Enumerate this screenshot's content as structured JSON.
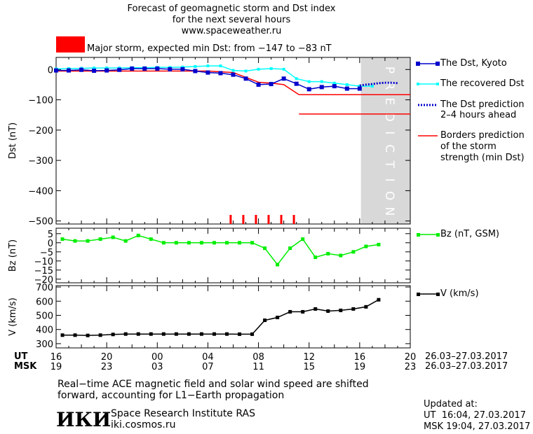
{
  "header": {
    "title_line1": "Forecast of geomagnetic storm and Dst index",
    "title_line2": "for the next several hours",
    "url": "www.spaceweather.ru",
    "storm_text": "Major storm, expected min Dst: from −147 to −83 nT",
    "storm_color": "#ff0000"
  },
  "legend": {
    "dst_kyoto": "The Dst, Kyoto",
    "dst_recovered": "The recovered Dst",
    "dst_prediction_1": "The Dst prediction",
    "dst_prediction_2": "2–4 hours ahead",
    "borders_1": "Borders prediction",
    "borders_2": "of the storm",
    "borders_3": "strength (min Dst)",
    "bz": "Bz (nT, GSM)",
    "v": "V (km/s)"
  },
  "colors": {
    "kyoto": "#0000cc",
    "recovered": "#00ffff",
    "prediction": "#0000cc",
    "borders": "#ff0000",
    "bz": "#00ee00",
    "v": "#000000",
    "prediction_band": "#d8d8d8"
  },
  "prediction_label": "PREDICTION",
  "time_axis": {
    "ut_label": "UT",
    "msk_label": "MSK",
    "ut_ticks": [
      "16",
      "20",
      "00",
      "04",
      "08",
      "12",
      "16",
      "20"
    ],
    "msk_ticks": [
      "19",
      "23",
      "03",
      "07",
      "11",
      "15",
      "19",
      "23"
    ],
    "ut_range": "26.03–27.03.2017",
    "msk_range": "26.03–27.03.2017"
  },
  "footer": {
    "note_line1": "Real−time ACE magnetic field and solar wind speed are shifted",
    "note_line2": "forward, accounting for L1−Earth propagation",
    "logo": "ИКИ",
    "institute": "Space Research Institute RAS",
    "site": "iki.cosmos.ru",
    "updated_label": "Updated at:",
    "updated_ut": "UT  16:04, 27.03.2017",
    "updated_msk": "MSK 19:04, 27.03.2017"
  },
  "chart_data": [
    {
      "type": "line",
      "ylabel": "Dst (nT)",
      "ylim": [
        -510,
        40
      ],
      "yticks": [
        0,
        -100,
        -200,
        -300,
        -400,
        -500
      ],
      "ytick_labels": [
        "0",
        "−100",
        "−200",
        "−300",
        "−400",
        "−500"
      ],
      "x_unit": "hours since 16:00 UT 26.03.2017",
      "xlim": [
        16,
        44
      ],
      "prediction_band": [
        40.1,
        44
      ],
      "series": [
        {
          "name": "The Dst, Kyoto",
          "x": [
            16,
            17,
            18,
            19,
            20,
            21,
            22,
            23,
            24,
            25,
            26,
            27,
            28,
            29,
            30,
            31,
            32,
            33,
            34,
            35,
            36,
            37,
            38,
            39,
            40
          ],
          "y": [
            -3,
            -3,
            -1,
            -4,
            -3,
            -1,
            3,
            3,
            3,
            1,
            1,
            -5,
            -10,
            -12,
            -17,
            -30,
            -50,
            -48,
            -30,
            -47,
            -65,
            -58,
            -55,
            -63,
            -63
          ]
        },
        {
          "name": "The recovered Dst",
          "x": [
            16,
            17,
            18,
            19,
            20,
            21,
            22,
            23,
            24,
            25,
            26,
            27,
            28,
            29,
            30,
            31,
            32,
            33,
            34,
            35,
            36,
            37,
            38,
            39,
            40,
            41
          ],
          "y": [
            2,
            3,
            4,
            5,
            5,
            5,
            6,
            6,
            7,
            7,
            8,
            10,
            12,
            12,
            -3,
            -5,
            1,
            3,
            1,
            -30,
            -40,
            -40,
            -45,
            -50,
            -55,
            -55
          ]
        },
        {
          "name": "The Dst prediction 2–4 hours ahead",
          "x": [
            40,
            40.5,
            41,
            41.5,
            42,
            42.5,
            43
          ],
          "y": [
            -53,
            -50,
            -48,
            -45,
            -44,
            -44,
            -45
          ]
        },
        {
          "name": "Borders prediction of the storm strength (min Dst)",
          "segments": [
            {
              "x": [
                16,
                28,
                30,
                32,
                33,
                34,
                35.2
              ],
              "y": [
                -5,
                -5,
                -10,
                -42,
                -45,
                -50,
                -83
              ]
            },
            {
              "x": [
                35.2,
                44
              ],
              "y": [
                -83,
                -83
              ]
            },
            {
              "x": [
                35.2,
                44
              ],
              "y": [
                -147,
                -147
              ]
            }
          ]
        }
      ],
      "storm_markers_x": [
        29.8,
        30.8,
        31.8,
        32.8,
        33.8,
        34.8
      ]
    },
    {
      "type": "line",
      "ylabel": "Bz (nT)",
      "ylim": [
        -22,
        8
      ],
      "yticks": [
        5,
        0,
        -5,
        -10,
        -15,
        -20
      ],
      "ytick_labels": [
        "5",
        "0",
        "−5",
        "−10",
        "−15",
        "−20"
      ],
      "series": [
        {
          "name": "Bz (nT, GSM)",
          "x": [
            16.5,
            17.5,
            18.5,
            19.5,
            20.5,
            21.5,
            22.5,
            23.5,
            24.5,
            25.5,
            26.5,
            27.5,
            28.5,
            29.5,
            30.5,
            31.5,
            32.5,
            33.5,
            34.5,
            35.5,
            36.5,
            37.5,
            38.5,
            39.5,
            40.5,
            41.5
          ],
          "y": [
            2,
            1,
            1,
            2,
            3,
            1,
            4,
            2,
            0,
            0,
            0,
            0,
            0,
            0,
            0,
            0,
            -3,
            -12,
            -3,
            2,
            -8,
            -6,
            -7,
            -5,
            -2,
            -1
          ]
        }
      ]
    },
    {
      "type": "line",
      "ylabel": "V (km/s)",
      "ylim": [
        270,
        710
      ],
      "yticks": [
        700,
        600,
        500,
        400,
        300
      ],
      "ytick_labels": [
        "700",
        "600",
        "500",
        "400",
        "300"
      ],
      "series": [
        {
          "name": "V (km/s)",
          "x": [
            16.5,
            17.5,
            18.5,
            19.5,
            20.5,
            21.5,
            22.5,
            23.5,
            24.5,
            25.5,
            26.5,
            27.5,
            28.5,
            29.5,
            30.5,
            31.5,
            32.5,
            33.5,
            34.5,
            35.5,
            36.5,
            37.5,
            38.5,
            39.5,
            40.5,
            41.5
          ],
          "y": [
            360,
            360,
            358,
            360,
            365,
            368,
            368,
            368,
            368,
            368,
            368,
            368,
            368,
            368,
            367,
            367,
            465,
            485,
            525,
            525,
            545,
            530,
            535,
            545,
            560,
            610
          ]
        }
      ]
    }
  ]
}
